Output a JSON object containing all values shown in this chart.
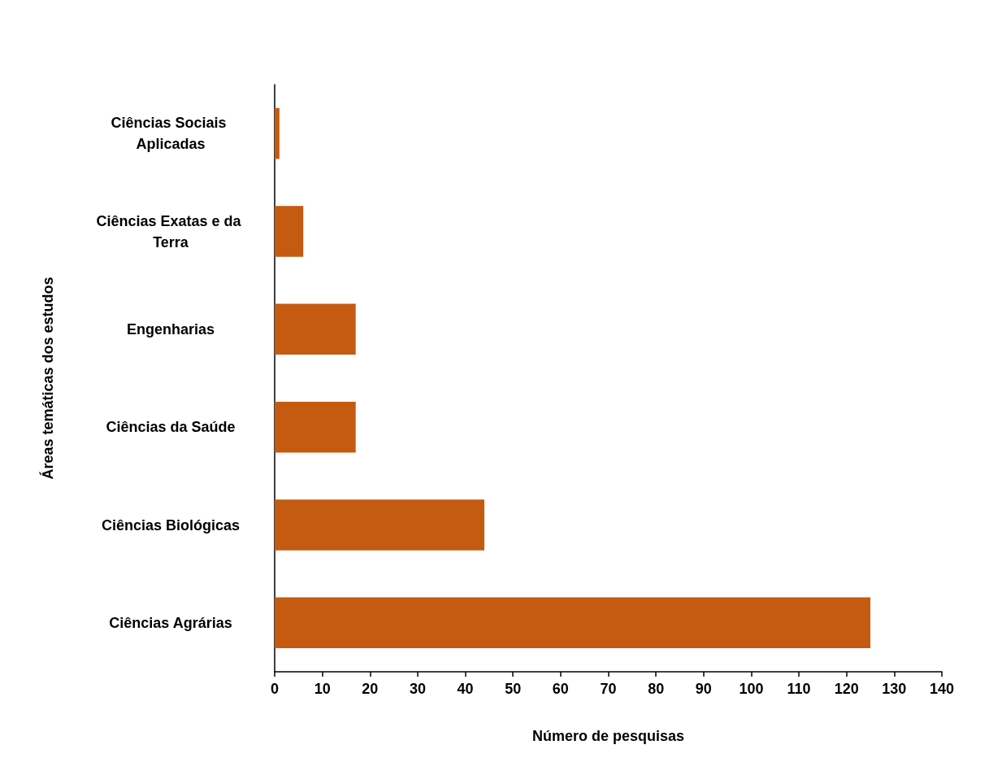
{
  "chart_data": {
    "type": "bar",
    "orientation": "horizontal",
    "xlabel": "Número de pesquisas",
    "ylabel": "Áreas temáticas dos estudos",
    "categories": [
      "Ciências Sociais Aplicadas",
      "Ciências Exatas e da Terra",
      "Engenharias",
      "Ciências da Saúde",
      "Ciências Biológicas",
      "Ciências Agrárias"
    ],
    "values": [
      1,
      6,
      17,
      17,
      44,
      125
    ],
    "color": "#c55a11",
    "xlim": [
      0,
      140
    ],
    "xticks": [
      0,
      10,
      20,
      30,
      40,
      50,
      60,
      70,
      80,
      90,
      100,
      110,
      120,
      130,
      140
    ],
    "grid": false
  }
}
